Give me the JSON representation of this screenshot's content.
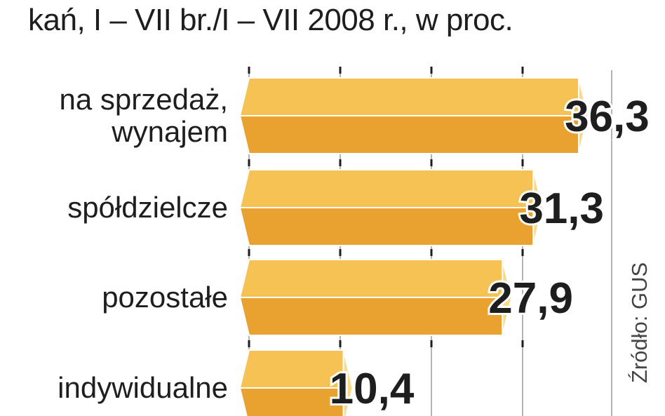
{
  "chart_data": {
    "type": "bar",
    "orientation": "horizontal",
    "title": "kań, I – VII br./I – VII 2008 r., w proc.",
    "categories": [
      [
        "na sprzedaż,",
        "wynajem"
      ],
      [
        "spółdzielcze"
      ],
      [
        "pozostałe"
      ],
      [
        "indywidualne"
      ]
    ],
    "values": [
      36.3,
      31.3,
      27.9,
      10.4
    ],
    "value_labels": [
      "36,3",
      "31,3",
      "27,9",
      "10,4"
    ],
    "xlim": [
      0,
      40
    ],
    "grid": true,
    "source": "Źródło: GUS",
    "colors": {
      "bar_top": "#f6c253",
      "bar_bottom": "#e9a12f",
      "bar_end": "#f8d98a",
      "grid": "#b3b3b3"
    }
  }
}
